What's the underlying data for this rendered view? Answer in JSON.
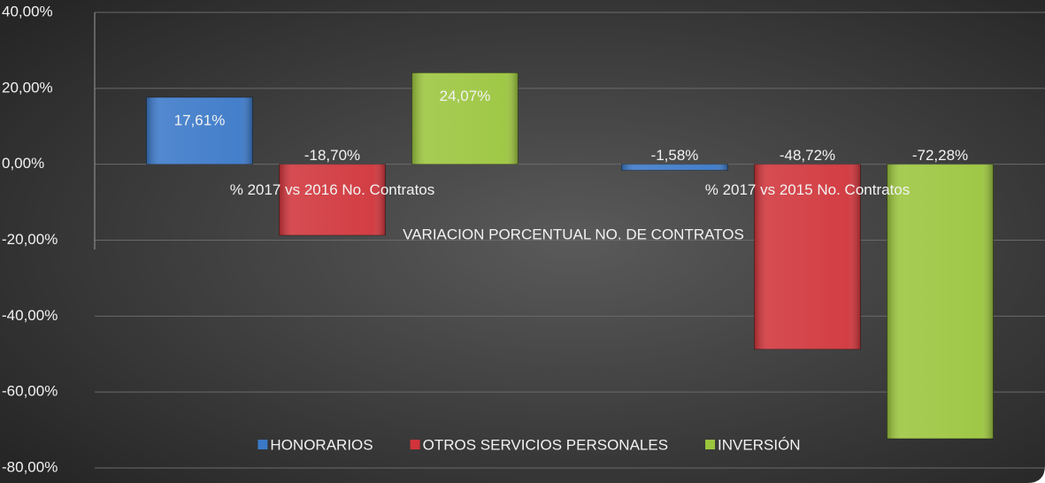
{
  "chart_data": {
    "type": "bar",
    "x_label": "VARIACION PORCENTUAL NO. DE CONTRATOS",
    "categories": [
      "% 2017 vs 2016 No. Contratos",
      "% 2017 vs 2015 No. Contratos"
    ],
    "series": [
      {
        "name": "HONORARIOS",
        "color": "#3a78c8",
        "values": [
          17.61,
          -1.58
        ],
        "value_labels": [
          "17,61%",
          "-1,58%"
        ]
      },
      {
        "name": "OTROS SERVICIOS PERSONALES",
        "color": "#d0343a",
        "values": [
          -18.7,
          -48.72
        ],
        "value_labels": [
          "-18,70%",
          "-48,72%"
        ]
      },
      {
        "name": "INVERSIÓN",
        "color": "#9bc53d",
        "values": [
          24.07,
          -72.28
        ],
        "value_labels": [
          "24,07%",
          "-72,28%"
        ]
      }
    ],
    "ylim": [
      -80,
      40
    ],
    "yticks": [
      {
        "value": 40,
        "label": "40,00%"
      },
      {
        "value": 20,
        "label": "20,00%"
      },
      {
        "value": 0,
        "label": "0,00%"
      },
      {
        "value": -20,
        "label": "-20,00%"
      },
      {
        "value": -40,
        "label": "-40,00%"
      },
      {
        "value": -60,
        "label": "-60,00%"
      },
      {
        "value": -80,
        "label": "-80,00%"
      }
    ],
    "grid": true,
    "legend": "bottom"
  }
}
